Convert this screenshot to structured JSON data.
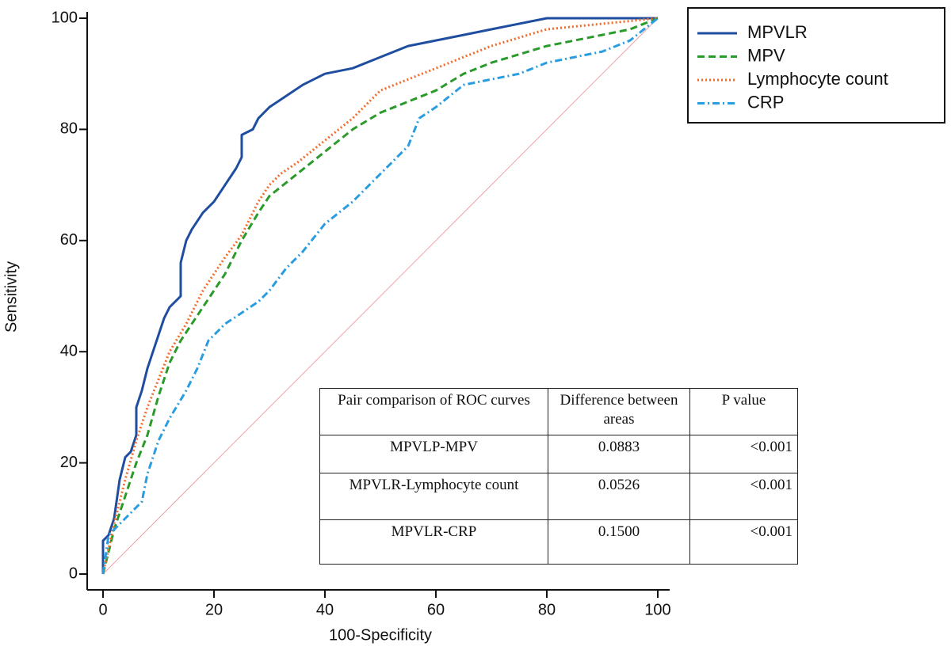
{
  "chart_data": {
    "type": "line",
    "xlabel": "100-Specificity",
    "ylabel": "Sensitivity",
    "xlim": [
      0,
      100
    ],
    "ylim": [
      0,
      100
    ],
    "xticks": [
      0,
      20,
      40,
      60,
      80,
      100
    ],
    "yticks": [
      0,
      20,
      40,
      60,
      80,
      100
    ],
    "legend": "upper right",
    "series": [
      {
        "name": "MPVLR",
        "color": "#1f4ea0",
        "dash": "none",
        "x": [
          0,
          0,
          1,
          2,
          3,
          4,
          5,
          6,
          6,
          7,
          8,
          9,
          10,
          11,
          12,
          13,
          14,
          14,
          15,
          16,
          18,
          20,
          22,
          24,
          25,
          25,
          27,
          28,
          30,
          33,
          36,
          40,
          45,
          50,
          55,
          60,
          65,
          70,
          80,
          100
        ],
        "values": [
          0,
          6,
          7,
          10,
          17,
          21,
          22,
          25,
          30,
          33,
          37,
          40,
          43,
          46,
          48,
          49,
          50,
          56,
          60,
          62,
          65,
          67,
          70,
          73,
          75,
          79,
          80,
          82,
          84,
          86,
          88,
          90,
          91,
          93,
          95,
          96,
          97,
          98,
          100,
          100
        ]
      },
      {
        "name": "MPV",
        "color": "#2a9a2a",
        "dash": "9,5",
        "x": [
          0,
          2,
          4,
          6,
          8,
          10,
          12,
          14,
          16,
          18,
          20,
          22,
          25,
          28,
          30,
          35,
          40,
          45,
          50,
          55,
          60,
          65,
          70,
          80,
          90,
          95,
          100
        ],
        "values": [
          0,
          8,
          14,
          20,
          25,
          32,
          38,
          42,
          45,
          48,
          51,
          54,
          60,
          65,
          68,
          72,
          76,
          80,
          83,
          85,
          87,
          90,
          92,
          95,
          97,
          98,
          100
        ]
      },
      {
        "name": "Lymphocyte count",
        "color": "#f26b2a",
        "dash": "2,3",
        "x": [
          0,
          2,
          4,
          6,
          8,
          10,
          12,
          15,
          18,
          20,
          22,
          25,
          28,
          30,
          32,
          35,
          40,
          45,
          50,
          55,
          60,
          65,
          70,
          80,
          90,
          100
        ],
        "values": [
          0,
          9,
          17,
          24,
          30,
          35,
          40,
          45,
          51,
          54,
          57,
          61,
          67,
          70,
          72,
          74,
          78,
          82,
          87,
          89,
          91,
          93,
          95,
          98,
          99,
          100
        ]
      },
      {
        "name": "CRP",
        "color": "#2a9de0",
        "dash": "9,4,2,4",
        "x": [
          0,
          1,
          3,
          5,
          7,
          8,
          10,
          12,
          15,
          17,
          19,
          22,
          25,
          28,
          30,
          33,
          36,
          40,
          45,
          50,
          55,
          57,
          60,
          65,
          70,
          75,
          80,
          90,
          95,
          100
        ],
        "values": [
          0,
          7,
          9,
          11,
          13,
          18,
          24,
          28,
          33,
          37,
          42,
          45,
          47,
          49,
          51,
          55,
          58,
          63,
          67,
          72,
          77,
          82,
          84,
          88,
          89,
          90,
          92,
          94,
          96,
          100
        ]
      }
    ],
    "table": {
      "columns": [
        "Pair comparison of ROC curves",
        "Difference between areas",
        "P value"
      ],
      "rows": [
        [
          "MPVLP-MPV",
          "0.0883",
          "<0.001"
        ],
        [
          "MPVLR-Lymphocyte count",
          "0.0526",
          "<0.001"
        ],
        [
          "MPVLR-CRP",
          "0.1500",
          "<0.001"
        ]
      ]
    }
  }
}
